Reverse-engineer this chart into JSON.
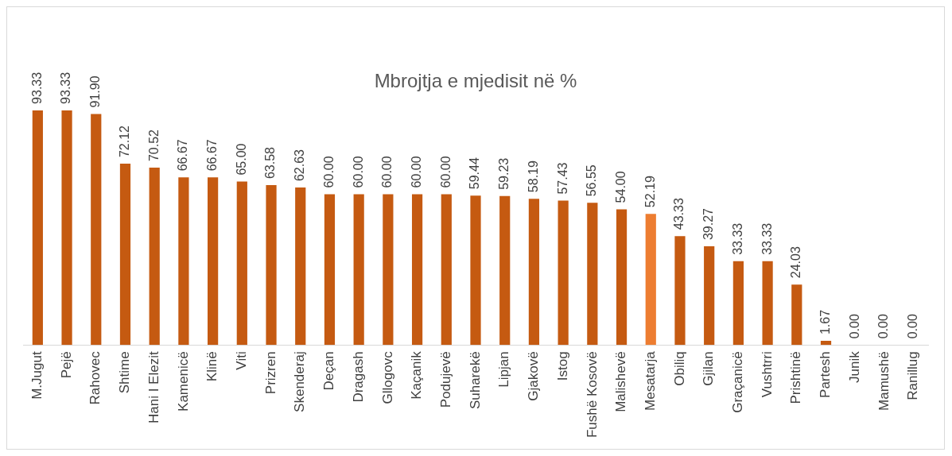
{
  "chart_data": {
    "type": "bar",
    "title": "Mbrojtja e mjedisit në %",
    "categories": [
      "M.Jugut",
      "Pejë",
      "Rahovec",
      "Shtime",
      "Hani I Elezit",
      "Kamenicë",
      "Klinë",
      "Viti",
      "Prizren",
      "Skenderaj",
      "Deçan",
      "Dragash",
      "Gllogovc",
      "Kaçanik",
      "Podujevë",
      "Suharekë",
      "Lipjan",
      "Gjakovë",
      "Istog",
      "Fushë Kosovë",
      "Malishevë",
      "Mesatarja",
      "Obiliq",
      "Gjilan",
      "Graçanicë",
      "Vushtrri",
      "Prishtinë",
      "Partesh",
      "Junik",
      "Mamushë",
      "Ranillug"
    ],
    "values": [
      93.33,
      93.33,
      91.9,
      72.12,
      70.52,
      66.67,
      66.67,
      65,
      63.58,
      62.63,
      60,
      60,
      60,
      60,
      60,
      59.44,
      59.23,
      58.19,
      57.43,
      56.55,
      54,
      52.19,
      43.33,
      39.27,
      33.33,
      33.33,
      24.03,
      1.67,
      0,
      0,
      0
    ],
    "value_labels": [
      "93.33",
      "93.33",
      "91.90",
      "72.12",
      "70.52",
      "66.67",
      "66.67",
      "65.00",
      "63.58",
      "62.63",
      "60.00",
      "60.00",
      "60.00",
      "60.00",
      "60.00",
      "59.44",
      "59.23",
      "58.19",
      "57.43",
      "56.55",
      "54.00",
      "52.19",
      "43.33",
      "39.27",
      "33.33",
      "33.33",
      "24.03",
      "1.67",
      "0.00",
      "0.00",
      "0.00"
    ],
    "colors": [
      "#c55a11",
      "#c55a11",
      "#c55a11",
      "#c55a11",
      "#c55a11",
      "#c55a11",
      "#c55a11",
      "#c55a11",
      "#c55a11",
      "#c55a11",
      "#c55a11",
      "#c55a11",
      "#c55a11",
      "#c55a11",
      "#c55a11",
      "#c55a11",
      "#c55a11",
      "#c55a11",
      "#c55a11",
      "#c55a11",
      "#c55a11",
      "#ed7d31",
      "#c55a11",
      "#c55a11",
      "#c55a11",
      "#c55a11",
      "#c55a11",
      "#c55a11",
      "#c55a11",
      "#c55a11",
      "#c55a11"
    ],
    "grid": false,
    "legend": false
  }
}
